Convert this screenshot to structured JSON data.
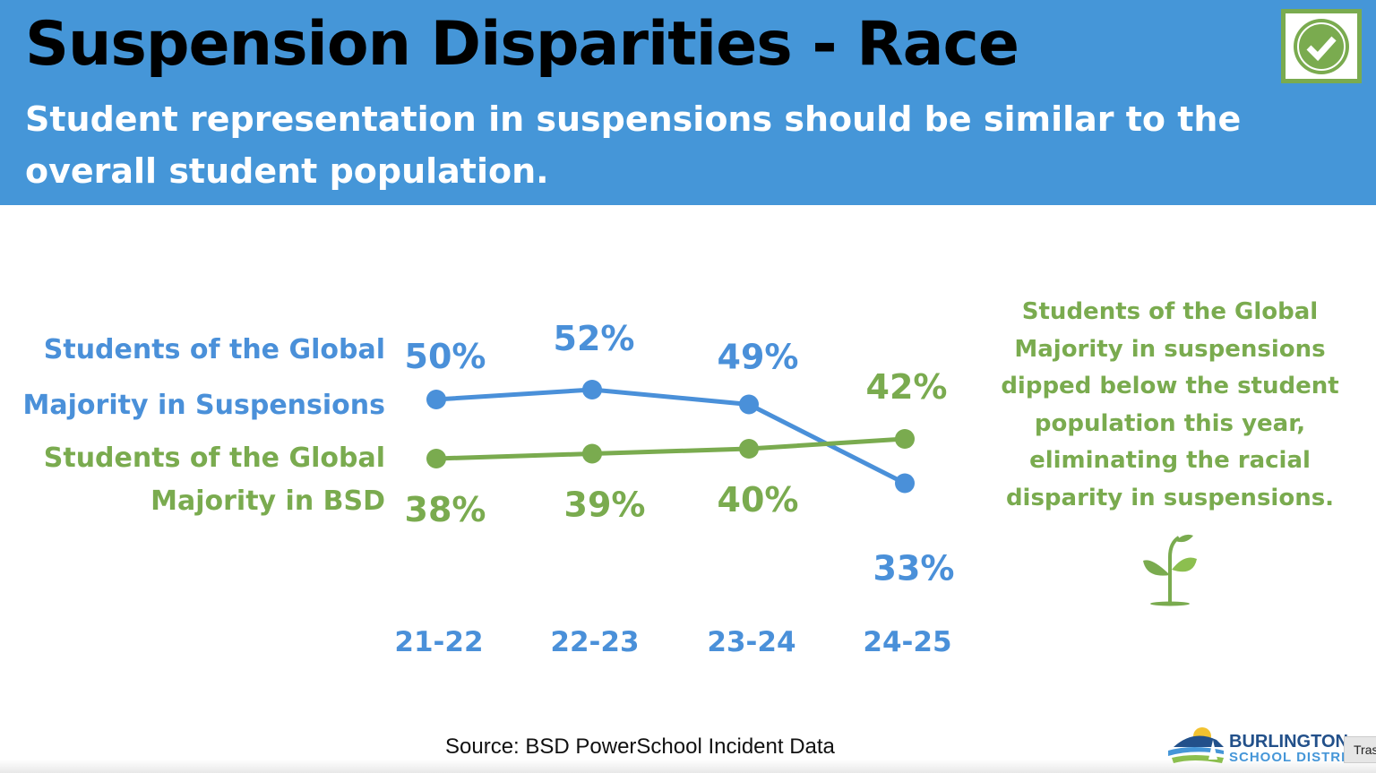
{
  "header": {
    "title": "Suspension Disparities - Race",
    "subtitle": "Student representation in suspensions should be similar to the overall student population.",
    "badge_icon": "check-circle-icon"
  },
  "chart_data": {
    "type": "line",
    "categories": [
      "21-22",
      "22-23",
      "23-24",
      "24-25"
    ],
    "series": [
      {
        "name": "Students of the Global Majority in Suspensions",
        "values": [
          50,
          52,
          49,
          33
        ],
        "labels": [
          "50%",
          "52%",
          "49%",
          "33%"
        ],
        "color": "#4a90d9"
      },
      {
        "name": "Students of the Global Majority in BSD",
        "values": [
          38,
          39,
          40,
          42
        ],
        "labels": [
          "38%",
          "39%",
          "40%",
          "42%"
        ],
        "color": "#7aab4f"
      }
    ],
    "ylim": [
      30,
      55
    ],
    "grid": false,
    "legend": "left"
  },
  "legend": {
    "blue_line1": "Students of the Global",
    "blue_line2": "Majority in Suspensions",
    "green_line1": "Students of the Global",
    "green_line2": "Majority in BSD"
  },
  "note": "Students of the Global Majority in suspensions dipped below the student population this year, eliminating the racial disparity in suspensions.",
  "source": "Source: BSD PowerSchool Incident Data",
  "logo": {
    "line1": "BURLINGTON",
    "line2": "SCHOOL DISTRICT"
  },
  "tooltip": "Tras",
  "colors": {
    "header": "#4596d8",
    "blue": "#4a90d9",
    "green": "#7aab4f"
  }
}
